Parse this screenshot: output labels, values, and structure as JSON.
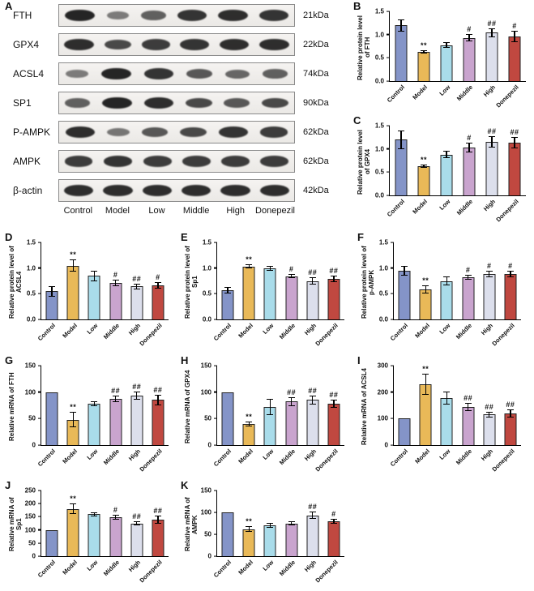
{
  "bar_colors": [
    "#8494c8",
    "#e9b958",
    "#a9dcea",
    "#c9a4ce",
    "#dcdfec",
    "#c04840"
  ],
  "blot": {
    "panel": "A",
    "lanes": [
      "Control",
      "Model",
      "Low",
      "Middle",
      "High",
      "Donepezil"
    ],
    "proteins": [
      {
        "name": "FTH",
        "kda": "21kDa",
        "bands": [
          0.95,
          0.35,
          0.55,
          0.85,
          0.9,
          0.85
        ]
      },
      {
        "name": "GPX4",
        "kda": "22kDa",
        "bands": [
          0.9,
          0.7,
          0.8,
          0.85,
          0.9,
          0.9
        ]
      },
      {
        "name": "ACSL4",
        "kda": "74kDa",
        "bands": [
          0.35,
          0.95,
          0.85,
          0.6,
          0.5,
          0.55
        ]
      },
      {
        "name": "SP1",
        "kda": "90kDa",
        "bands": [
          0.55,
          0.95,
          0.9,
          0.7,
          0.6,
          0.7
        ]
      },
      {
        "name": "P-AMPK",
        "kda": "62kDa",
        "bands": [
          0.9,
          0.4,
          0.6,
          0.7,
          0.85,
          0.8
        ]
      },
      {
        "name": "AMPK",
        "kda": "62kDa",
        "bands": [
          0.8,
          0.85,
          0.8,
          0.8,
          0.8,
          0.8
        ]
      },
      {
        "name": "β-actin",
        "kda": "42kDa",
        "bands": [
          0.9,
          0.9,
          0.9,
          0.9,
          0.9,
          0.9
        ]
      }
    ]
  },
  "chart_data": [
    {
      "panel": "B",
      "type": "bar",
      "ylabel": "Relative protein level of FTH",
      "categories": [
        "Control",
        "Model",
        "Low",
        "Middle",
        "High",
        "Donepezil"
      ],
      "values": [
        1.2,
        0.63,
        0.77,
        0.93,
        1.04,
        0.96
      ],
      "errors": [
        0.13,
        0.03,
        0.06,
        0.08,
        0.1,
        0.13
      ],
      "annotations": [
        "",
        "**",
        "",
        "#",
        "##",
        "#"
      ],
      "ylim": [
        0,
        1.5
      ],
      "yticks": [
        "0.0",
        "0.5",
        "1.0",
        "1.5"
      ]
    },
    {
      "panel": "C",
      "type": "bar",
      "ylabel": "Relative protein level of GPX4",
      "categories": [
        "Control",
        "Model",
        "Low",
        "Middle",
        "High",
        "Donepezil"
      ],
      "values": [
        1.2,
        0.63,
        0.88,
        1.03,
        1.15,
        1.13
      ],
      "errors": [
        0.2,
        0.04,
        0.08,
        0.1,
        0.12,
        0.12
      ],
      "annotations": [
        "",
        "**",
        "",
        "#",
        "##",
        "##"
      ],
      "ylim": [
        0,
        1.5
      ],
      "yticks": [
        "0.0",
        "0.5",
        "1.0",
        "1.5"
      ]
    },
    {
      "panel": "D",
      "type": "bar",
      "ylabel": "Relative protein level of ACSL4",
      "categories": [
        "Control",
        "Model",
        "Low",
        "Middle",
        "High",
        "Donepezil"
      ],
      "values": [
        0.55,
        1.05,
        0.85,
        0.71,
        0.64,
        0.66
      ],
      "errors": [
        0.1,
        0.12,
        0.1,
        0.06,
        0.06,
        0.06
      ],
      "annotations": [
        "",
        "**",
        "",
        "#",
        "##",
        "#"
      ],
      "ylim": [
        0,
        1.5
      ],
      "yticks": [
        "0.0",
        "0.5",
        "1.0",
        "1.5"
      ]
    },
    {
      "panel": "E",
      "type": "bar",
      "ylabel": "Relative protein level of Sp1",
      "categories": [
        "Control",
        "Model",
        "Low",
        "Middle",
        "High",
        "Donepezil"
      ],
      "values": [
        0.57,
        1.03,
        1.0,
        0.84,
        0.75,
        0.79
      ],
      "errors": [
        0.06,
        0.04,
        0.05,
        0.04,
        0.07,
        0.06
      ],
      "annotations": [
        "",
        "**",
        "",
        "#",
        "##",
        "##"
      ],
      "ylim": [
        0,
        1.5
      ],
      "yticks": [
        "0.0",
        "0.5",
        "1.0",
        "1.5"
      ]
    },
    {
      "panel": "F",
      "type": "bar",
      "ylabel": "Relative protein level of p-AMPK",
      "categories": [
        "Control",
        "Model",
        "Low",
        "Middle",
        "High",
        "Donepezil"
      ],
      "values": [
        0.95,
        0.58,
        0.75,
        0.82,
        0.88,
        0.88
      ],
      "errors": [
        0.1,
        0.08,
        0.09,
        0.05,
        0.06,
        0.06
      ],
      "annotations": [
        "",
        "**",
        "",
        "#",
        "#",
        "#"
      ],
      "ylim": [
        0,
        1.5
      ],
      "yticks": [
        "0.0",
        "0.5",
        "1.0",
        "1.5"
      ]
    },
    {
      "panel": "G",
      "type": "bar",
      "ylabel": "Relative mRNA of FTH",
      "categories": [
        "Control",
        "Model",
        "Low",
        "Middle",
        "High",
        "Donepezil"
      ],
      "values": [
        100,
        48,
        78,
        87,
        93,
        85
      ],
      "errors": [
        0,
        15,
        5,
        6,
        8,
        10
      ],
      "annotations": [
        "",
        "**",
        "",
        "##",
        "##",
        "##"
      ],
      "ylim": [
        0,
        150
      ],
      "yticks": [
        "0",
        "50",
        "100",
        "150"
      ]
    },
    {
      "panel": "H",
      "type": "bar",
      "ylabel": "Relative mRNA of GPX4",
      "categories": [
        "Control",
        "Model",
        "Low",
        "Middle",
        "High",
        "Donepezil"
      ],
      "values": [
        100,
        40,
        72,
        82,
        85,
        78
      ],
      "errors": [
        0,
        5,
        15,
        8,
        8,
        8
      ],
      "annotations": [
        "",
        "**",
        "",
        "##",
        "##",
        "##"
      ],
      "ylim": [
        0,
        150
      ],
      "yticks": [
        "0",
        "50",
        "100",
        "150"
      ]
    },
    {
      "panel": "I",
      "type": "bar",
      "ylabel": "Relative mRNA of ACSL4",
      "categories": [
        "Control",
        "Model",
        "Low",
        "Middle",
        "High",
        "Donepezil"
      ],
      "values": [
        100,
        230,
        178,
        145,
        115,
        120
      ],
      "errors": [
        0,
        40,
        25,
        15,
        12,
        15
      ],
      "annotations": [
        "",
        "**",
        "",
        "##",
        "##",
        "##"
      ],
      "ylim": [
        0,
        300
      ],
      "yticks": [
        "0",
        "100",
        "200",
        "300"
      ]
    },
    {
      "panel": "J",
      "type": "bar",
      "ylabel": "Relative mRNA of Sp1",
      "categories": [
        "Control",
        "Model",
        "Low",
        "Middle",
        "High",
        "Donepezil"
      ],
      "values": [
        100,
        180,
        160,
        148,
        125,
        140
      ],
      "errors": [
        0,
        20,
        8,
        10,
        8,
        15
      ],
      "annotations": [
        "",
        "**",
        "",
        "#",
        "##",
        "##"
      ],
      "ylim": [
        0,
        250
      ],
      "yticks": [
        "0",
        "50",
        "100",
        "150",
        "200",
        "250"
      ]
    },
    {
      "panel": "K",
      "type": "bar",
      "ylabel": "Relative mRNA of AMPK",
      "categories": [
        "Control",
        "Model",
        "Low",
        "Middle",
        "High",
        "Donepezil"
      ],
      "values": [
        100,
        62,
        70,
        75,
        93,
        80
      ],
      "errors": [
        0,
        6,
        6,
        5,
        8,
        6
      ],
      "annotations": [
        "",
        "**",
        "",
        "",
        "##",
        "#"
      ],
      "ylim": [
        0,
        150
      ],
      "yticks": [
        "0",
        "50",
        "100",
        "150"
      ]
    }
  ]
}
